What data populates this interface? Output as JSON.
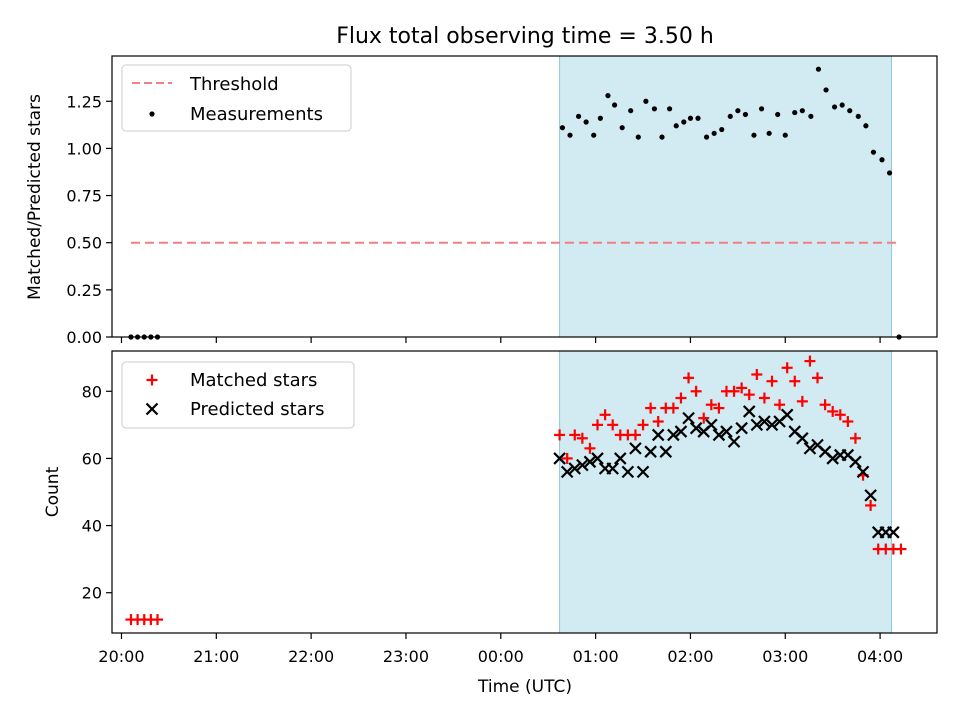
{
  "title": "Flux total observing time = 3.50 h",
  "x_axis_label": "Time (UTC)",
  "x_tick_labels": [
    "20:00",
    "21:00",
    "22:00",
    "23:00",
    "00:00",
    "01:00",
    "02:00",
    "03:00",
    "04:00"
  ],
  "chart_data": [
    {
      "type": "scatter",
      "ylabel": "Matched/Predicted stars",
      "xlim": [
        -0.1,
        8.6
      ],
      "ylim": [
        0,
        1.49
      ],
      "yticks": [
        0,
        0.25,
        0.5,
        0.75,
        1.0,
        1.25
      ],
      "ytick_labels": [
        "0.00",
        "0.25",
        "0.50",
        "0.75",
        "1.00",
        "1.25"
      ],
      "shaded_span": {
        "x0": 4.62,
        "x1": 8.12,
        "color": "#add8e6"
      },
      "legend_placement": "upper-left",
      "threshold": {
        "name": "Threshold",
        "y": 0.5,
        "x0": 0.1,
        "x1": 8.2,
        "color": "#f08080",
        "style": "dashed"
      },
      "series": [
        {
          "name": "Measurements",
          "marker": "dot",
          "color": "#000000",
          "x": [
            0.1,
            0.17,
            0.24,
            0.31,
            0.38,
            4.65,
            4.73,
            4.82,
            4.9,
            4.98,
            5.05,
            5.13,
            5.2,
            5.28,
            5.37,
            5.45,
            5.53,
            5.62,
            5.7,
            5.78,
            5.85,
            5.93,
            6.0,
            6.08,
            6.17,
            6.25,
            6.33,
            6.42,
            6.5,
            6.58,
            6.67,
            6.75,
            6.83,
            6.92,
            7.0,
            7.1,
            7.18,
            7.27,
            7.35,
            7.43,
            7.52,
            7.6,
            7.68,
            7.77,
            7.85,
            7.93,
            8.02,
            8.1,
            8.2
          ],
          "y": [
            0,
            0,
            0,
            0,
            0,
            1.11,
            1.07,
            1.17,
            1.14,
            1.07,
            1.16,
            1.28,
            1.23,
            1.11,
            1.2,
            1.06,
            1.25,
            1.21,
            1.06,
            1.21,
            1.12,
            1.14,
            1.16,
            1.16,
            1.06,
            1.08,
            1.1,
            1.17,
            1.2,
            1.18,
            1.07,
            1.21,
            1.08,
            1.18,
            1.07,
            1.19,
            1.2,
            1.17,
            1.42,
            1.31,
            1.22,
            1.23,
            1.2,
            1.17,
            1.12,
            0.98,
            0.94,
            0.87,
            0
          ]
        }
      ]
    },
    {
      "type": "scatter",
      "ylabel": "Count",
      "xlim": [
        -0.1,
        8.6
      ],
      "ylim": [
        8,
        92
      ],
      "yticks": [
        20,
        40,
        60,
        80
      ],
      "ytick_labels": [
        "20",
        "40",
        "60",
        "80"
      ],
      "shaded_span": {
        "x0": 4.62,
        "x1": 8.12,
        "color": "#add8e6"
      },
      "legend_placement": "upper-left",
      "series": [
        {
          "name": "Matched stars",
          "marker": "plus",
          "color": "#ff0000",
          "x": [
            0.1,
            0.17,
            0.24,
            0.31,
            0.38,
            4.62,
            4.7,
            4.78,
            4.86,
            4.94,
            5.02,
            5.1,
            5.18,
            5.26,
            5.34,
            5.42,
            5.5,
            5.58,
            5.66,
            5.74,
            5.82,
            5.9,
            5.98,
            6.06,
            6.14,
            6.22,
            6.3,
            6.38,
            6.46,
            6.54,
            6.62,
            6.7,
            6.78,
            6.86,
            6.94,
            7.02,
            7.1,
            7.18,
            7.26,
            7.34,
            7.42,
            7.5,
            7.58,
            7.66,
            7.74,
            7.82,
            7.9,
            7.98,
            8.06,
            8.14,
            8.22
          ],
          "y": [
            12,
            12,
            12,
            12,
            12,
            67,
            60,
            67,
            66,
            63,
            70,
            73,
            70,
            67,
            67,
            67,
            70,
            75,
            71,
            75,
            75,
            78,
            84,
            80,
            72,
            76,
            75,
            80,
            80,
            81,
            79,
            85,
            78,
            83,
            76,
            87,
            83,
            77,
            89,
            84,
            76,
            74,
            73,
            71,
            66,
            55,
            46,
            33,
            33,
            33,
            33
          ]
        },
        {
          "name": "Predicted stars",
          "marker": "x",
          "color": "#000000",
          "x": [
            4.62,
            4.7,
            4.78,
            4.86,
            4.94,
            5.02,
            5.1,
            5.18,
            5.26,
            5.34,
            5.42,
            5.5,
            5.58,
            5.66,
            5.74,
            5.82,
            5.9,
            5.98,
            6.06,
            6.14,
            6.22,
            6.3,
            6.38,
            6.46,
            6.54,
            6.62,
            6.7,
            6.78,
            6.86,
            6.94,
            7.02,
            7.1,
            7.18,
            7.26,
            7.34,
            7.42,
            7.5,
            7.58,
            7.66,
            7.74,
            7.82,
            7.9,
            7.98,
            8.06,
            8.14
          ],
          "y": [
            60,
            56,
            57,
            58,
            59,
            60,
            57,
            57,
            60,
            56,
            63,
            56,
            62,
            67,
            62,
            67,
            68,
            72,
            69,
            68,
            70,
            67,
            68,
            65,
            69,
            74,
            70,
            71,
            70,
            71,
            73,
            68,
            66,
            63,
            64,
            62,
            60,
            61,
            61,
            59,
            56,
            49,
            38,
            38,
            38
          ]
        }
      ]
    }
  ]
}
